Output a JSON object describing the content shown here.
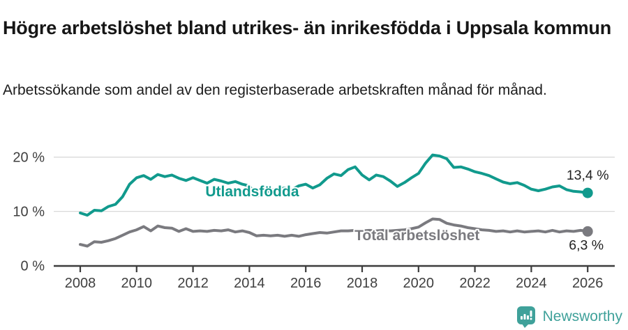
{
  "header": {
    "title": "Högre arbetslöshet bland utrikes- än inrikesfödda i Uppsala kommun",
    "subtitle": "Arbetssökande som andel av den registerbaserade arbetskraften månad för månad."
  },
  "footer": {
    "brand": "Newsworthy",
    "logo_icon": "speech-bubble-bar-chart-icon"
  },
  "colors": {
    "foreign_born": "#119a8d",
    "total": "#7a7a7f",
    "grid": "#d9d9d9",
    "axis": "#3c3c3c",
    "tick_text": "#3f3f3f",
    "value_text": "#222222",
    "brand": "#3fa19a"
  },
  "chart_data": {
    "type": "line",
    "title": "Arbetssökande som andel av den registerbaserade arbetskraften månad för månad",
    "x_start": 2008.0,
    "x_step": 0.25,
    "x_ticks": [
      2008,
      2010,
      2012,
      2014,
      2016,
      2018,
      2020,
      2022,
      2024,
      2026
    ],
    "ylim": [
      0,
      22
    ],
    "grid_values": [
      10,
      20
    ],
    "y_ticks": [
      {
        "value": 0,
        "label": "0 %"
      },
      {
        "value": 10,
        "label": "10 %"
      },
      {
        "value": 20,
        "label": "20 %"
      }
    ],
    "legend_position": "inline-labels",
    "grid": true,
    "series": [
      {
        "name": "Utlandsfödda",
        "color_key": "foreign_born",
        "end_label": "13,4 %",
        "last_value": 13.4,
        "label_anchor": {
          "year": 2014.1,
          "value": 13.7
        },
        "values": [
          9.7,
          9.3,
          10.2,
          10.1,
          10.9,
          11.3,
          12.7,
          15.0,
          16.2,
          16.6,
          15.9,
          16.8,
          16.4,
          16.7,
          16.1,
          15.7,
          16.2,
          15.7,
          15.2,
          15.9,
          15.6,
          15.2,
          15.5,
          15.0,
          14.7,
          12.8,
          13.3,
          13.9,
          14.1,
          14.3,
          14.0,
          14.7,
          15.0,
          14.3,
          14.9,
          16.1,
          16.9,
          16.6,
          17.7,
          18.2,
          16.7,
          15.8,
          16.7,
          16.4,
          15.6,
          14.6,
          15.3,
          16.2,
          17.0,
          18.9,
          20.4,
          20.2,
          19.7,
          18.1,
          18.2,
          17.8,
          17.3,
          17.0,
          16.6,
          16.0,
          15.4,
          15.1,
          15.3,
          14.8,
          14.1,
          13.8,
          14.1,
          14.5,
          14.7,
          14.0,
          13.7,
          13.6,
          13.4
        ]
      },
      {
        "name": "Total arbetslöshet",
        "color_key": "total",
        "end_label": "6,3 %",
        "last_value": 6.3,
        "label_anchor": {
          "year": 2019.95,
          "value": 5.6
        },
        "values": [
          3.9,
          3.6,
          4.4,
          4.3,
          4.6,
          5.0,
          5.6,
          6.2,
          6.6,
          7.2,
          6.4,
          7.3,
          7.0,
          6.9,
          6.3,
          6.8,
          6.3,
          6.4,
          6.3,
          6.5,
          6.4,
          6.6,
          6.2,
          6.4,
          6.1,
          5.5,
          5.6,
          5.5,
          5.6,
          5.4,
          5.6,
          5.4,
          5.7,
          5.9,
          6.1,
          6.0,
          6.2,
          6.4,
          6.4,
          6.5,
          6.4,
          6.5,
          6.4,
          6.5,
          6.4,
          6.5,
          6.6,
          6.8,
          7.1,
          7.9,
          8.6,
          8.5,
          7.8,
          7.5,
          7.3,
          7.0,
          6.8,
          6.6,
          6.5,
          6.3,
          6.4,
          6.2,
          6.4,
          6.2,
          6.3,
          6.4,
          6.2,
          6.5,
          6.2,
          6.4,
          6.3,
          6.5,
          6.3
        ]
      }
    ]
  }
}
